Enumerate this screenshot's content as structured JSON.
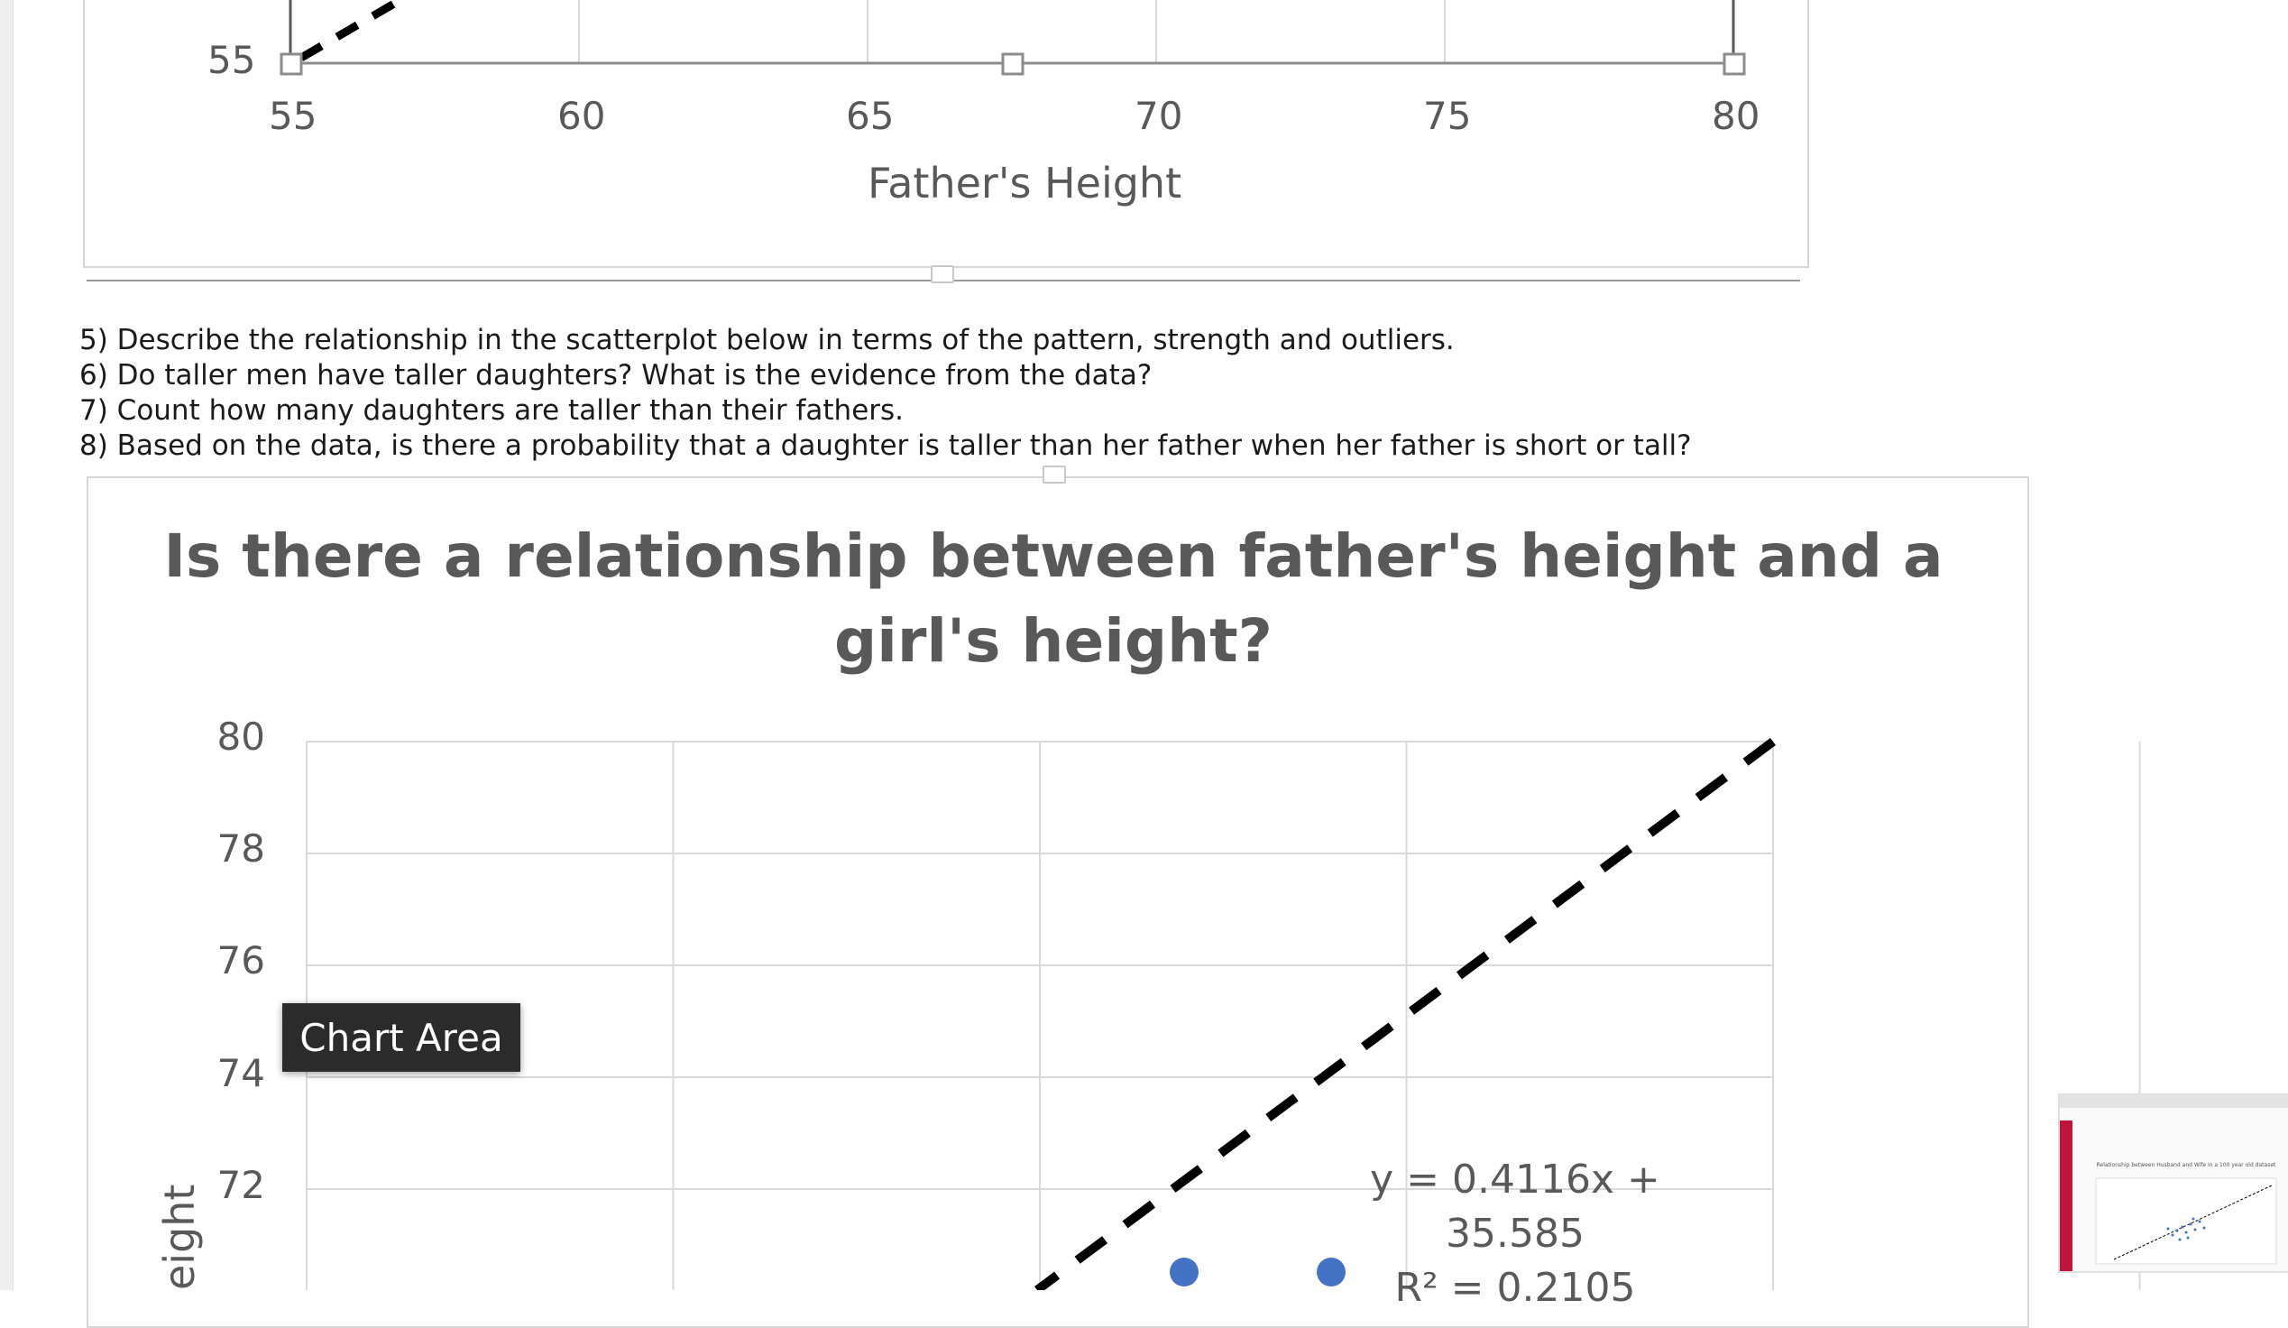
{
  "top_chart": {
    "ytick_label": "55",
    "xticks": [
      "55",
      "60",
      "65",
      "70",
      "75",
      "80"
    ],
    "xlabel": "Father's Height"
  },
  "questions": [
    "5) Describe the relationship in the scatterplot below in terms of the pattern, strength and outliers.",
    "6) Do taller men have taller daughters? What is the evidence from the data?",
    "7) Count how many daughters are taller than their fathers.",
    "8) Based on the data, is there a probability that a daughter is taller than her father when her father is short or tall?"
  ],
  "chart_data": {
    "type": "scatter",
    "title_line1": "Is there a relationship between father's height and a",
    "title_line2": "girl's height?",
    "yticks": [
      "80",
      "78",
      "76",
      "74",
      "72"
    ],
    "ylabel_visible": "eight",
    "trendline_label": "y = 0.4116x + 35.585",
    "r2_label": "R² = 0.2105",
    "points_visible": [
      {
        "x": 70.0,
        "y": 70.0
      },
      {
        "x": 72.0,
        "y": 70.0
      }
    ],
    "dashed_line_y_over_x": true,
    "marker_color": "#4472c4"
  },
  "tooltip": "Chart Area",
  "thumbnail": {
    "title": "Relationship between Husband and Wife in a 100 year old dataset"
  }
}
